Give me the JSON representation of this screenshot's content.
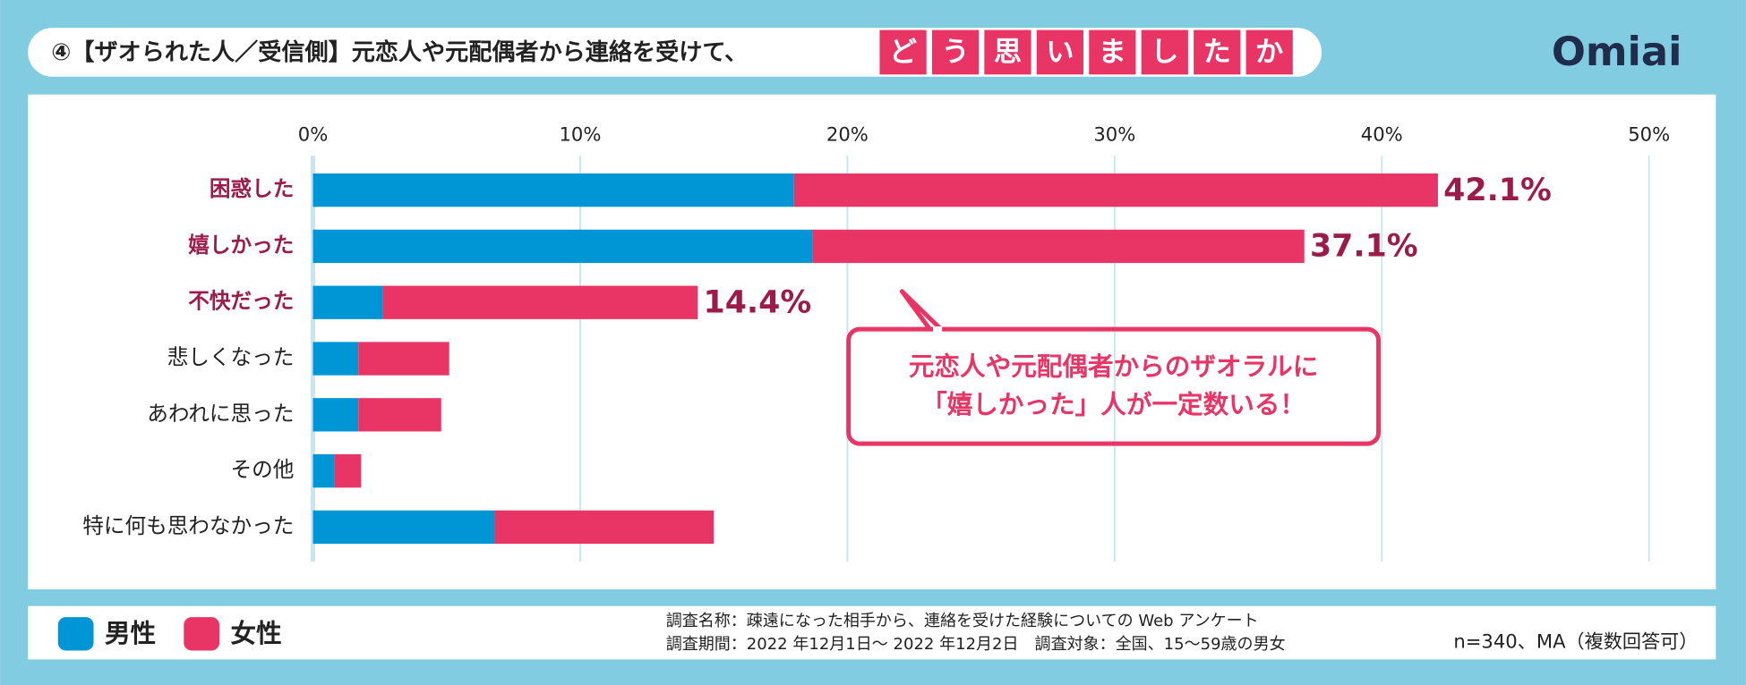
{
  "chart_data": {
    "type": "stacked-barh",
    "title": "④【ザオられた人／受信側】元恋人や元配偶者から連絡を受けて、",
    "title_highlight": [
      "ど",
      "う",
      "思",
      "い",
      "ま",
      "し",
      "た",
      "か"
    ],
    "logo": "Omiai",
    "categories": [
      "困惑した",
      "嬉しかった",
      "不快だった",
      "悲しくなった",
      "あわれに思った",
      "その他",
      "特に何も思わなかった"
    ],
    "series": [
      {
        "name": "男性",
        "color": "#0096d6",
        "values": [
          18.0,
          18.7,
          2.6,
          1.7,
          1.7,
          0.8,
          6.8
        ]
      },
      {
        "name": "女性",
        "color": "#e83566",
        "values": [
          24.1,
          18.4,
          11.8,
          3.4,
          3.1,
          1.0,
          8.2
        ]
      }
    ],
    "totals": [
      42.1,
      37.1,
      14.4,
      null,
      null,
      null,
      null
    ],
    "total_labels": [
      "42.1%",
      "37.1%",
      "14.4%",
      null,
      null,
      null,
      null
    ],
    "xlim": [
      0,
      50
    ],
    "xticks": [
      {
        "value": 0,
        "label": "0%"
      },
      {
        "value": 10,
        "label": "10%"
      },
      {
        "value": 20,
        "label": "20%"
      },
      {
        "value": 30,
        "label": "30%"
      },
      {
        "value": 40,
        "label": "40%"
      },
      {
        "value": 50,
        "label": "50%"
      }
    ],
    "grid": true,
    "annotation": [
      "元恋人や元配偶者からのザオラルに",
      "「嬉しかった」人が一定数いる！"
    ],
    "notes": [
      "調査名称：疎遠になった相手から、連絡を受けた経験についての Web アンケート",
      "調査期間：2022 年12月1日～ 2022 年12月2日　調査対象：全国、15～59歳の男女"
    ],
    "sample_note": "n=340、MA（複数回答可）"
  }
}
